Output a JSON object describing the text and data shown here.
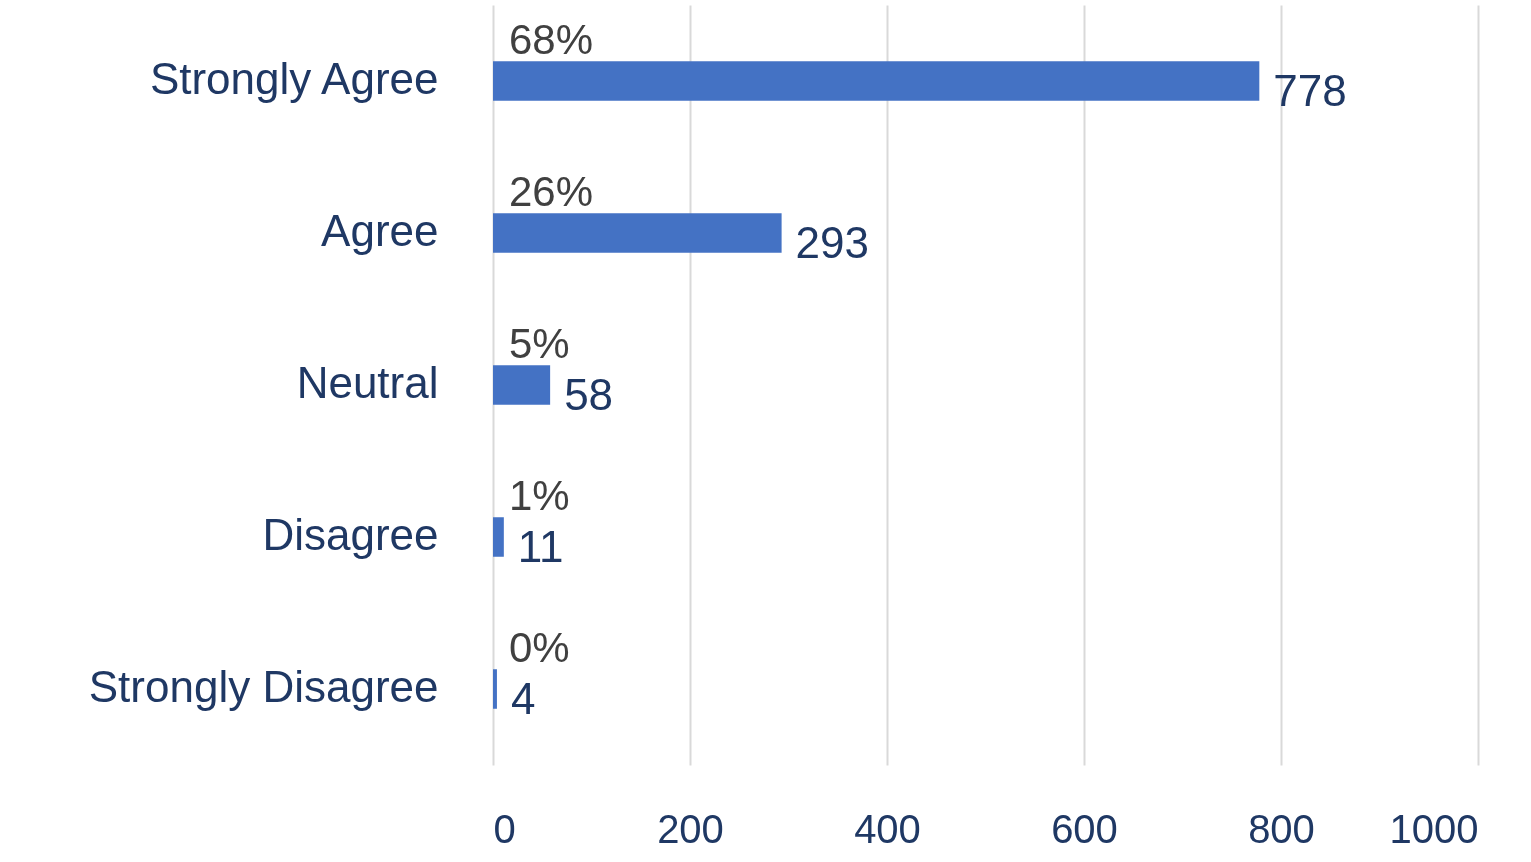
{
  "chart_data": {
    "type": "bar",
    "orientation": "horizontal",
    "categories": [
      "Strongly Agree",
      "Agree",
      "Neutral",
      "Disagree",
      "Strongly Disagree"
    ],
    "values": [
      778,
      293,
      58,
      11,
      4
    ],
    "color": "#4472c4",
    "xlim": [
      0,
      1000
    ],
    "xticks": [
      0,
      200,
      400,
      600,
      800,
      1000
    ],
    "grid": "x",
    "data_labels": true,
    "annotations": [
      "68%",
      "26%",
      "5%",
      "1%",
      "0%"
    ]
  }
}
